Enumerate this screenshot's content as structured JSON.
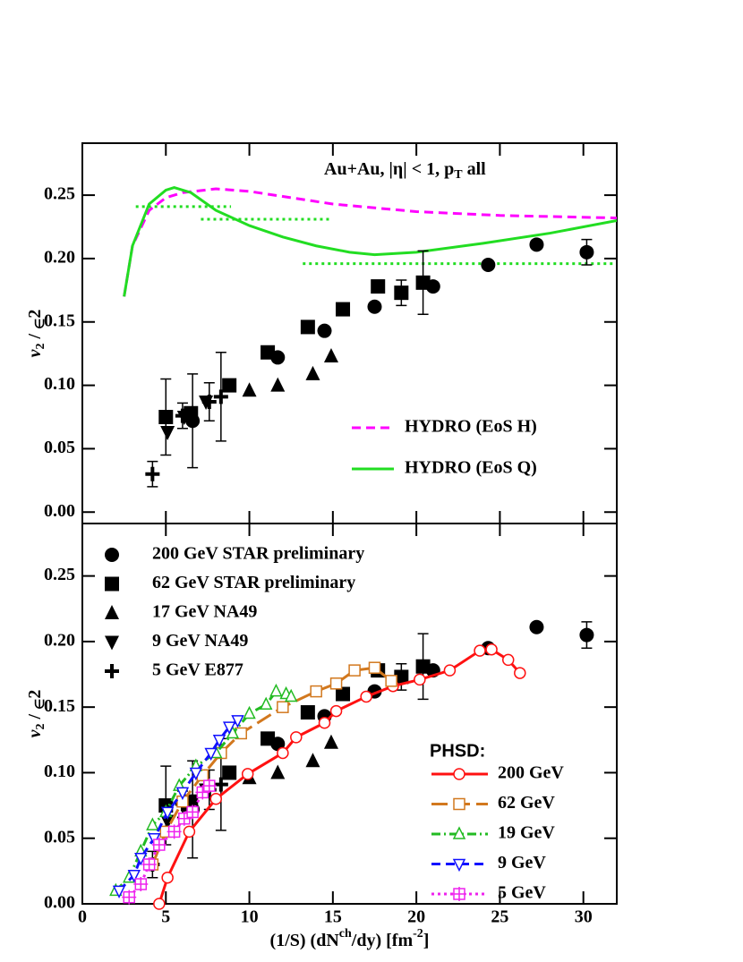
{
  "chart_data": [
    {
      "type": "line",
      "annotation_parts": [
        "Au+Au, |η| < 1, p",
        "T",
        " all"
      ],
      "ylabel_parts": [
        "v",
        "2",
        " / ",
        "∈",
        "2"
      ],
      "xlim": [
        0,
        32
      ],
      "ylim": [
        -0.009,
        0.291
      ],
      "xticks": [
        0,
        5,
        10,
        15,
        20,
        25,
        30
      ],
      "yticks": [
        {
          "value": 0,
          "label": "0.00"
        },
        {
          "value": 0.05,
          "label": "0.05"
        },
        {
          "value": 0.1,
          "label": "0.10"
        },
        {
          "value": 0.15,
          "label": "0.15"
        },
        {
          "value": 0.2,
          "label": "0.20"
        },
        {
          "value": 0.25,
          "label": "0.25"
        }
      ],
      "legend": {
        "corner": "lower right",
        "series": [
          0,
          1
        ]
      },
      "series": [
        {
          "name": "HYDRO (EoS H)",
          "color": "#ff00ff",
          "style": "dashed",
          "x": [
            2.5,
            3,
            4,
            5,
            6,
            8,
            10,
            12,
            15,
            20,
            25,
            32
          ],
          "values": [
            0.17,
            0.21,
            0.238,
            0.248,
            0.252,
            0.255,
            0.253,
            0.249,
            0.243,
            0.237,
            0.234,
            0.232
          ]
        },
        {
          "name": "HYDRO (EoS Q)",
          "color": "#22dd22",
          "style": "solid",
          "x": [
            2.5,
            3,
            4,
            5,
            5.5,
            6.5,
            8,
            10,
            12,
            14,
            16,
            17.5,
            20,
            24,
            28,
            32
          ],
          "values": [
            0.17,
            0.21,
            0.243,
            0.254,
            0.256,
            0.252,
            0.238,
            0.226,
            0.217,
            0.21,
            0.205,
            0.203,
            0.205,
            0.212,
            0.22,
            0.23
          ]
        },
        {
          "color": "#22dd22",
          "style": "dotted",
          "x": [
            3.2,
            8.9
          ],
          "values": [
            0.241,
            0.241
          ]
        },
        {
          "color": "#22dd22",
          "style": "dotted",
          "x": [
            7.1,
            14.9
          ],
          "values": [
            0.231,
            0.231
          ]
        },
        {
          "color": "#22dd22",
          "style": "dotted",
          "x": [
            13.2,
            31.9
          ],
          "values": [
            0.196,
            0.196
          ]
        },
        {
          "color": "#000000",
          "marker": "circle",
          "style": "none",
          "x": [
            6.6,
            11.7,
            14.5,
            17.5,
            21,
            24.3,
            27.2,
            30.2
          ],
          "values": [
            0.072,
            0.122,
            0.143,
            0.162,
            0.178,
            0.195,
            0.211,
            0.205
          ],
          "errors": [
            0.037,
            null,
            null,
            null,
            null,
            null,
            null,
            0.01
          ]
        },
        {
          "color": "#000000",
          "marker": "square",
          "style": "none",
          "x": [
            5,
            6.5,
            8.8,
            11.1,
            13.5,
            15.6,
            17.7,
            19.1,
            20.4
          ],
          "values": [
            0.075,
            0.078,
            0.1,
            0.126,
            0.146,
            0.16,
            0.178,
            0.173,
            0.181
          ],
          "errors": [
            0.03,
            null,
            null,
            null,
            null,
            null,
            null,
            0.01,
            0.025
          ]
        },
        {
          "color": "#000000",
          "marker": "triangle",
          "style": "none",
          "x": [
            10,
            11.7,
            13.8,
            14.9
          ],
          "values": [
            0.096,
            0.1,
            0.109,
            0.123
          ]
        },
        {
          "color": "#000000",
          "marker": "triangle-down",
          "style": "none",
          "x": [
            5.1,
            6.1,
            7.4
          ],
          "values": [
            0.063,
            0.075,
            0.087
          ]
        },
        {
          "color": "#000000",
          "marker": "plus",
          "style": "none",
          "x": [
            4.2,
            6,
            7.6,
            8.3
          ],
          "values": [
            0.03,
            0.076,
            0.087,
            0.091
          ],
          "errors": [
            0.01,
            0.01,
            0.015,
            0.035
          ]
        }
      ]
    },
    {
      "type": "line",
      "ylabel_parts": [
        "v",
        "2",
        " / ",
        "∈",
        "2"
      ],
      "xlabel_parts": [
        "(1/S) (dN",
        "ch",
        "/dy) [fm",
        "-2",
        "]"
      ],
      "xlim": [
        0,
        32
      ],
      "ylim": [
        0,
        0.29
      ],
      "xticks": [
        0,
        5,
        10,
        15,
        20,
        25,
        30
      ],
      "yticks": [
        {
          "value": 0,
          "label": "0.00"
        },
        {
          "value": 0.05,
          "label": "0.05"
        },
        {
          "value": 0.1,
          "label": "0.10"
        },
        {
          "value": 0.15,
          "label": "0.15"
        },
        {
          "value": 0.2,
          "label": "0.20"
        },
        {
          "value": 0.25,
          "label": "0.25"
        }
      ],
      "legends": [
        {
          "corner": "upper left",
          "series": [
            0,
            1,
            2,
            3,
            4
          ]
        },
        {
          "corner": "lower right",
          "title": "PHSD:",
          "series": [
            5,
            6,
            7,
            8,
            9
          ]
        }
      ],
      "series": [
        {
          "name": "200 GeV STAR preliminary",
          "color": "#000000",
          "marker": "circle",
          "style": "none",
          "x": [
            6.6,
            11.7,
            14.5,
            17.5,
            21,
            24.3,
            27.2,
            30.2
          ],
          "values": [
            0.072,
            0.122,
            0.143,
            0.162,
            0.178,
            0.195,
            0.211,
            0.205
          ],
          "errors": [
            0.037,
            null,
            null,
            null,
            null,
            null,
            null,
            0.01
          ]
        },
        {
          "name": "62 GeV STAR preliminary",
          "color": "#000000",
          "marker": "square",
          "style": "none",
          "x": [
            5,
            6.5,
            8.8,
            11.1,
            13.5,
            15.6,
            17.7,
            19.1,
            20.4
          ],
          "values": [
            0.075,
            0.078,
            0.1,
            0.126,
            0.146,
            0.16,
            0.178,
            0.173,
            0.181
          ],
          "errors": [
            0.03,
            null,
            null,
            null,
            null,
            null,
            null,
            0.01,
            0.025
          ]
        },
        {
          "name": "17 GeV NA49",
          "color": "#000000",
          "marker": "triangle",
          "style": "none",
          "x": [
            10,
            11.7,
            13.8,
            14.9
          ],
          "values": [
            0.096,
            0.1,
            0.109,
            0.123
          ]
        },
        {
          "name": "9 GeV NA49",
          "color": "#000000",
          "marker": "triangle-down",
          "style": "none",
          "x": [
            5.1,
            6.1,
            7.4
          ],
          "values": [
            0.063,
            0.075,
            0.087
          ]
        },
        {
          "name": "5 GeV E877",
          "color": "#000000",
          "marker": "plus",
          "style": "none",
          "x": [
            4.2,
            6,
            7.6,
            8.3
          ],
          "values": [
            0.03,
            0.076,
            0.087,
            0.091
          ],
          "errors": [
            0.01,
            0.01,
            0.015,
            0.035
          ]
        },
        {
          "name": "200 GeV",
          "color": "#ff1111",
          "marker": "open-circle",
          "style": "solid",
          "x": [
            4.6,
            5.1,
            6.4,
            8,
            9.9,
            12,
            12.8,
            14.5,
            15.2,
            17,
            18.6,
            20.2,
            22,
            23.8,
            24.5,
            25.5,
            26.2
          ],
          "values": [
            0,
            0.02,
            0.055,
            0.08,
            0.099,
            0.115,
            0.127,
            0.138,
            0.147,
            0.158,
            0.166,
            0.171,
            0.178,
            0.193,
            0.194,
            0.186,
            0.176
          ]
        },
        {
          "name": "62 GeV",
          "color": "#d2781e",
          "marker": "open-square",
          "style": "longdash",
          "x": [
            4.2,
            5,
            6,
            7.2,
            8.3,
            9.5,
            12,
            14,
            15.2,
            16.3,
            17.5,
            18.5
          ],
          "values": [
            0.03,
            0.055,
            0.078,
            0.098,
            0.115,
            0.13,
            0.15,
            0.162,
            0.168,
            0.178,
            0.18,
            0.17
          ]
        },
        {
          "name": "19 GeV",
          "color": "#22bb22",
          "marker": "open-triangle",
          "style": "dashdot",
          "x": [
            2,
            2.8,
            3.5,
            4.2,
            5,
            5.8,
            6.8,
            8,
            9,
            10,
            11,
            11.6,
            12.2,
            12.5
          ],
          "values": [
            0.01,
            0.02,
            0.04,
            0.06,
            0.07,
            0.09,
            0.105,
            0.115,
            0.13,
            0.145,
            0.152,
            0.162,
            0.16,
            0.158
          ]
        },
        {
          "name": "9 GeV",
          "color": "#1111ff",
          "marker": "open-triangle-down",
          "style": "dashed",
          "x": [
            2.2,
            3.1,
            3.5,
            4.3,
            5.1,
            6,
            6.8,
            7.7,
            8.2,
            8.8,
            9.3
          ],
          "values": [
            0.01,
            0.022,
            0.035,
            0.05,
            0.07,
            0.085,
            0.1,
            0.115,
            0.125,
            0.135,
            0.14
          ]
        },
        {
          "name": "5 GeV",
          "color": "#ee22ee",
          "marker": "open-squareplus",
          "style": "dotted",
          "x": [
            2.8,
            3.5,
            4,
            4.6,
            5.5,
            6.1,
            6.6,
            7.2,
            7.6
          ],
          "values": [
            0.005,
            0.015,
            0.03,
            0.045,
            0.055,
            0.065,
            0.07,
            0.085,
            0.09
          ]
        }
      ]
    }
  ]
}
